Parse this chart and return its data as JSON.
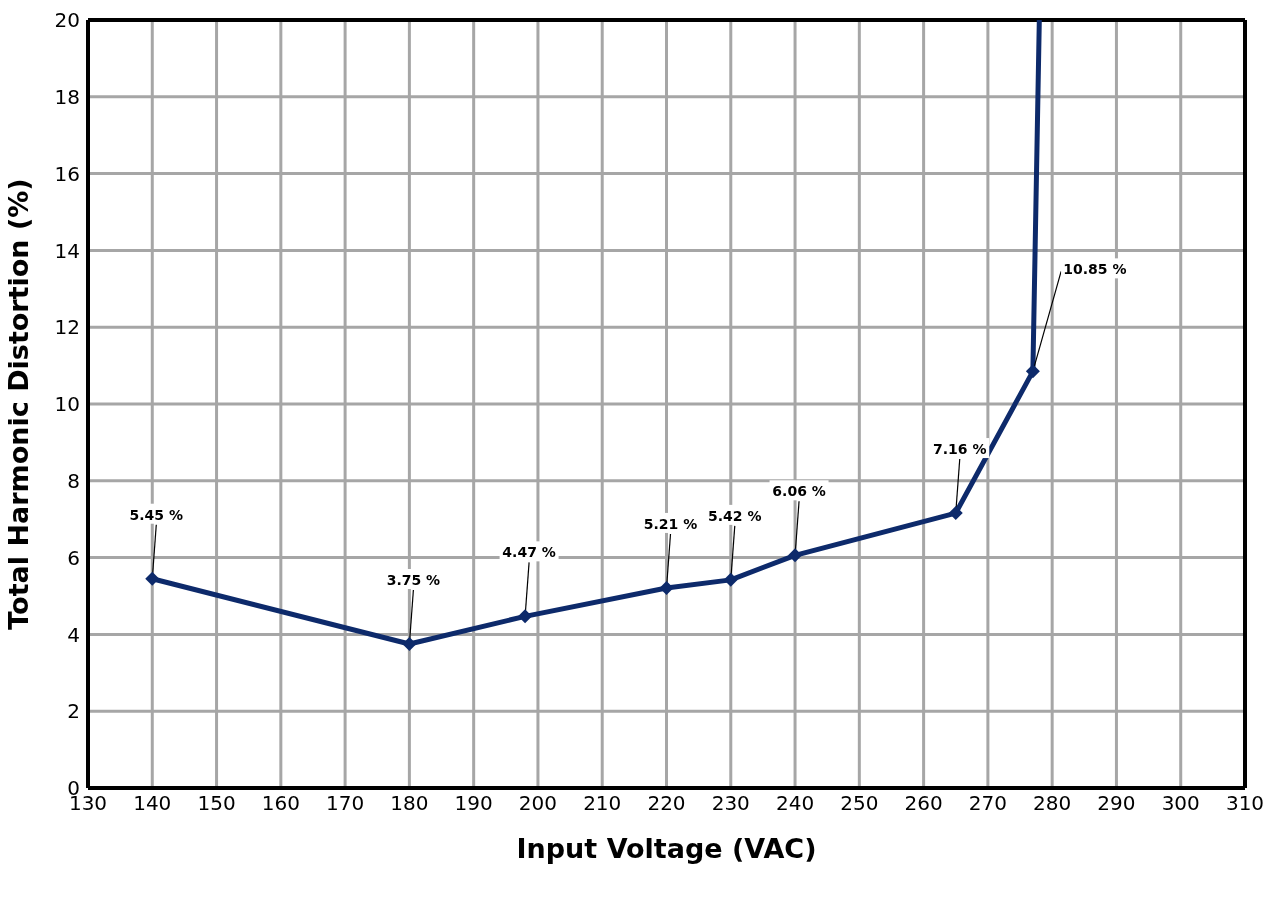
{
  "chart_data": {
    "type": "line",
    "xlabel": "Input Voltage (VAC)",
    "ylabel": "Total Harmonic Distortion (%)",
    "x": [
      140,
      180,
      198,
      220,
      230,
      240,
      265,
      277,
      278
    ],
    "series": [
      {
        "color": "#0d2a6b",
        "values": [
          5.45,
          3.75,
          4.47,
          5.21,
          5.42,
          6.06,
          7.16,
          10.85,
          20
        ],
        "value_labels": [
          "5.45 %",
          "3.75 %",
          "4.47 %",
          "5.21 %",
          "5.42 %",
          "6.06 %",
          "7.16 %",
          "10.85 %",
          null
        ]
      }
    ],
    "xlim": [
      130,
      310
    ],
    "xticks": [
      130,
      140,
      150,
      160,
      170,
      180,
      190,
      200,
      210,
      220,
      230,
      240,
      250,
      260,
      270,
      280,
      290,
      300,
      310
    ],
    "ylim": [
      0,
      20
    ],
    "yticks": [
      0,
      2,
      4,
      6,
      8,
      10,
      12,
      14,
      16,
      18,
      20
    ],
    "grid": true,
    "marker": "diamond",
    "line_style": "solid"
  }
}
